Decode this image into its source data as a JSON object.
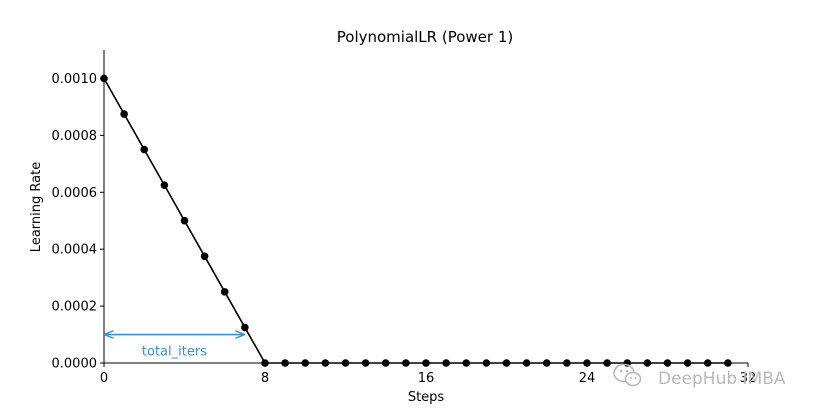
{
  "chart_data": {
    "type": "line",
    "title": "PolynomialLR (Power 1)",
    "xlabel": "Steps",
    "ylabel": "Learning Rate",
    "xlim": [
      0,
      32
    ],
    "ylim": [
      0,
      0.0011
    ],
    "xticks": [
      0,
      8,
      16,
      24,
      32
    ],
    "xtick_labels": [
      "0",
      "8",
      "16",
      "24",
      "32"
    ],
    "yticks": [
      0,
      0.0002,
      0.0004,
      0.0006,
      0.0008,
      0.001
    ],
    "ytick_labels": [
      "0.0000",
      "0.0002",
      "0.0004",
      "0.0006",
      "0.0008",
      "0.0010"
    ],
    "grid": false,
    "series": [
      {
        "color": "#000000",
        "marker": "circle",
        "x": [
          0,
          1,
          2,
          3,
          4,
          5,
          6,
          7,
          8,
          9,
          10,
          11,
          12,
          13,
          14,
          15,
          16,
          17,
          18,
          19,
          20,
          21,
          22,
          23,
          24,
          25,
          26,
          27,
          28,
          29,
          30,
          31
        ],
        "y": [
          0.001,
          0.000875,
          0.00075,
          0.000625,
          0.0005,
          0.000375,
          0.00025,
          0.000125,
          0,
          0,
          0,
          0,
          0,
          0,
          0,
          0,
          0,
          0,
          0,
          0,
          0,
          0,
          0,
          0,
          0,
          0,
          0,
          0,
          0,
          0,
          0,
          0
        ]
      }
    ],
    "annotations": [
      {
        "type": "double-arrow",
        "text": "total_iters",
        "x_start": 0,
        "x_end": 7,
        "y": 0.0001,
        "color": "#3d8fc9"
      }
    ]
  },
  "watermark": {
    "text": "DeepHub IMBA",
    "icon": "wechat-icon"
  }
}
